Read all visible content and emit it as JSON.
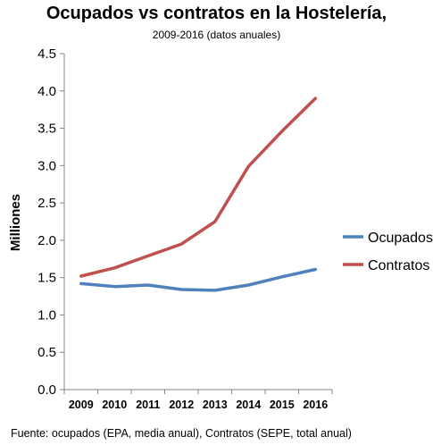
{
  "chart_data": {
    "type": "line",
    "title": "Ocupados vs contratos en la Hostelería,",
    "subtitle": "2009-2016 (datos anuales)",
    "ylabel": "Milliones",
    "xlabel": "",
    "ylim": [
      0,
      4.5
    ],
    "yticks": [
      "0.0",
      "0.5",
      "1.0",
      "1.5",
      "2.0",
      "2.5",
      "3.0",
      "3.5",
      "4.0",
      "4.5"
    ],
    "ytick_values": [
      0,
      0.5,
      1.0,
      1.5,
      2.0,
      2.5,
      3.0,
      3.5,
      4.0,
      4.5
    ],
    "categories": [
      "2009",
      "2010",
      "2011",
      "2012",
      "2013",
      "2014",
      "2015",
      "2016"
    ],
    "grid": false,
    "legend_position": "right",
    "series": [
      {
        "name": "Ocupados",
        "color": "#4f81bd",
        "values": [
          1.42,
          1.38,
          1.4,
          1.34,
          1.33,
          1.4,
          1.51,
          1.61
        ]
      },
      {
        "name": "Contratos",
        "color": "#c0504d",
        "values": [
          1.52,
          1.63,
          1.79,
          1.95,
          2.25,
          2.99,
          3.46,
          3.9
        ]
      }
    ],
    "source": "Fuente: ocupados (EPA, media anual), Contratos (SEPE, total anual)"
  }
}
